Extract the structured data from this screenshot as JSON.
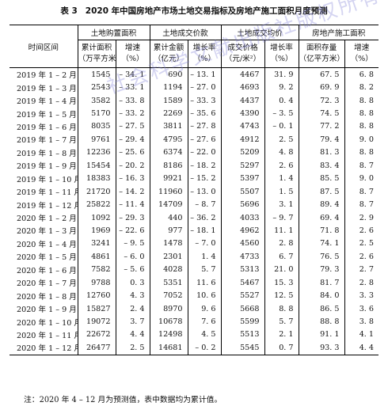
{
  "table_label": "表 3",
  "title": "2020 年中国房地产市场土地交易指标及房地产施工面积月度预测",
  "headers": {
    "period": "时间区间",
    "groups": [
      "土地购置面积",
      "土地成交价款",
      "土地成交均价",
      "房地产施工面积"
    ],
    "sub": [
      [
        "累计面积",
        "（万平方米）"
      ],
      [
        "增速",
        "（%）"
      ],
      [
        "累计金额",
        "（亿元）"
      ],
      [
        "增长率",
        "（%）"
      ],
      [
        "成交价格",
        "（元/米²）"
      ],
      [
        "增长率",
        "（%）"
      ],
      [
        "面积存量",
        "（亿平方米）"
      ],
      [
        "增速",
        "（%）"
      ]
    ]
  },
  "rows": [
    [
      "2019 年 1 – 2 月",
      "1545",
      "– 34. 1",
      "690",
      "– 13. 1",
      "4467",
      "31. 9",
      "67. 5",
      "6. 8"
    ],
    [
      "2019 年 1 – 3 月",
      "2543",
      "– 33. 1",
      "1194",
      "– 27. 0",
      "4693",
      "9. 2",
      "69. 9",
      "8. 2"
    ],
    [
      "2019 年 1 – 4 月",
      "3582",
      "– 33. 8",
      "1589",
      "– 33. 3",
      "4437",
      "0. 4",
      "72. 3",
      "8. 8"
    ],
    [
      "2019 年 1 – 5 月",
      "5170",
      "– 33. 2",
      "2269",
      "– 35. 6",
      "4390",
      "– 3. 5",
      "74. 5",
      "8. 8"
    ],
    [
      "2019 年 1 – 6 月",
      "8035",
      "– 27. 5",
      "3811",
      "– 27. 8",
      "4743",
      "– 0. 1",
      "77. 2",
      "8. 8"
    ],
    [
      "2019 年 1 – 7 月",
      "9761",
      "– 29. 4",
      "4795",
      "– 27. 6",
      "4912",
      "2. 5",
      "79. 4",
      "9. 0"
    ],
    [
      "2019 年 1 – 8 月",
      "12236",
      "– 25. 6",
      "6374",
      "– 22. 0",
      "5209",
      "4. 8",
      "81. 3",
      "8. 8"
    ],
    [
      "2019 年 1 – 9 月",
      "15454",
      "– 20. 2",
      "8186",
      "– 18. 2",
      "5297",
      "2. 6",
      "83. 4",
      "8. 7"
    ],
    [
      "2019 年 1 – 10 月",
      "18383",
      "– 16. 3",
      "9921",
      "– 15. 2",
      "5397",
      "1. 4",
      "85. 5",
      "9. 0"
    ],
    [
      "2019 年 1 – 11 月",
      "21720",
      "– 14. 2",
      "11960",
      "– 13. 0",
      "5507",
      "1. 5",
      "87. 5",
      "8. 7"
    ],
    [
      "2019 年 1 – 12 月",
      "25822",
      "– 11. 4",
      "14709",
      "– 8. 7",
      "5696",
      "3. 1",
      "89. 4",
      "8. 7"
    ],
    [
      "2020 年 1 – 2 月",
      "1092",
      "– 29. 3",
      "440",
      "– 36. 2",
      "4033",
      "– 9. 7",
      "69. 4",
      "2. 9"
    ],
    [
      "2020 年 1 – 3 月",
      "1969",
      "– 22. 6",
      "977",
      "– 18. 1",
      "4962",
      "11. 1",
      "71. 8",
      "2. 6"
    ],
    [
      "2020 年 1 – 4 月",
      "3241",
      "– 9. 5",
      "1478",
      "– 7. 0",
      "4560",
      "2. 8",
      "74. 1",
      "2. 5"
    ],
    [
      "2020 年 1 – 5 月",
      "4861",
      "– 6. 0",
      "2301",
      "1. 4",
      "4733",
      "6. 7",
      "76. 5",
      "2. 6"
    ],
    [
      "2020 年 1 – 6 月",
      "7582",
      "– 5. 6",
      "4028",
      "5. 7",
      "5313",
      "21. 0",
      "79. 3",
      "2. 7"
    ],
    [
      "2020 年 1 – 7 月",
      "9788",
      "0. 3",
      "5351",
      "11. 6",
      "5467",
      "15. 3",
      "81. 7",
      "2. 8"
    ],
    [
      "2020 年 1 – 8 月",
      "12760",
      "4. 3",
      "7052",
      "10. 6",
      "5527",
      "12. 5",
      "84. 0",
      "3. 3"
    ],
    [
      "2020 年 1 – 9 月",
      "15827",
      "2. 4",
      "8970",
      "9. 6",
      "5668",
      "8. 8",
      "86. 5",
      "3. 6"
    ],
    [
      "2020 年 1 – 10 月",
      "19072",
      "3. 7",
      "10678",
      "7. 6",
      "5599",
      "5. 7",
      "88. 8",
      "3. 8"
    ],
    [
      "2020 年 1 – 11 月",
      "22672",
      "4. 4",
      "12498",
      "4. 5",
      "5513",
      "2. 1",
      "91. 1",
      "4. 1"
    ],
    [
      "2020 年 1 – 12 月",
      "26477",
      "2. 5",
      "14681",
      "– 0. 2",
      "5545",
      "0. 7",
      "93. 3",
      "4. 4"
    ]
  ],
  "note": "注：2020 年 4 – 12 月为预测值，表中数据均为累计值。",
  "watermark": "社会科学文献出版社版权所有"
}
